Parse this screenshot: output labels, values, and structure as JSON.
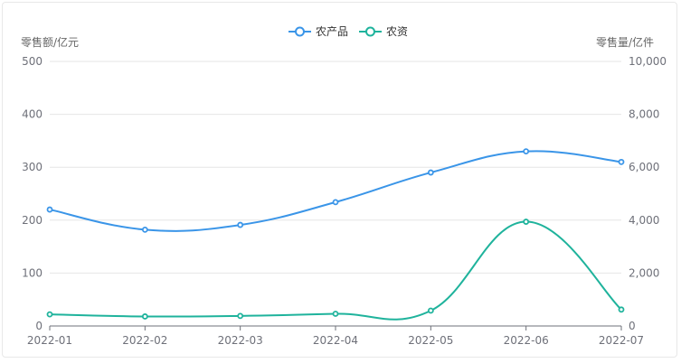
{
  "chart_data": {
    "type": "line",
    "title": "",
    "categories": [
      "2022-01",
      "2022-02",
      "2022-03",
      "2022-04",
      "2022-05",
      "2022-06",
      "2022-07"
    ],
    "y_left": {
      "name": "零售额/亿元",
      "min": 0,
      "max": 500,
      "ticks": [
        "0",
        "100",
        "200",
        "300",
        "400",
        "500"
      ]
    },
    "y_right": {
      "name": "零售量/亿件",
      "min": 0,
      "max": 10000,
      "ticks": [
        "0",
        "2,000",
        "4,000",
        "6,000",
        "8,000",
        "10,000"
      ]
    },
    "series": [
      {
        "name": "农产品",
        "axis": "left",
        "color": "#3a95e8",
        "values": [
          220,
          182,
          191,
          234,
          290,
          330,
          310
        ]
      },
      {
        "name": "农资",
        "axis": "left",
        "color": "#1fb39c",
        "values": [
          22,
          18,
          19,
          23,
          29,
          197,
          31
        ]
      }
    ],
    "grid": true,
    "legend_position": "top-center"
  }
}
